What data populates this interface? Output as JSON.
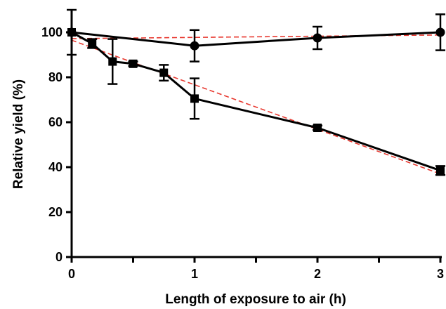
{
  "chart_data": {
    "type": "line",
    "title": "",
    "xlabel": "Length of exposure to air (h)",
    "ylabel": "Relative yield (%)",
    "xlim": [
      0,
      3
    ],
    "ylim": [
      0,
      110
    ],
    "xticks_labeled": [
      0,
      1,
      2,
      3
    ],
    "xticks_minor": [
      0.5,
      1.5,
      2.5
    ],
    "yticks": [
      0,
      20,
      40,
      60,
      80,
      100
    ],
    "grid": false,
    "legend": "none",
    "series": [
      {
        "marker": "circle",
        "color": "#000000",
        "points": [
          {
            "x": 0,
            "y": 100,
            "err": 0
          },
          {
            "x": 1,
            "y": 94,
            "err": 7
          },
          {
            "x": 2,
            "y": 97.5,
            "err": 5
          },
          {
            "x": 3,
            "y": 100,
            "err": 8
          }
        ]
      },
      {
        "marker": "square",
        "color": "#000000",
        "points": [
          {
            "x": 0,
            "y": 100,
            "err": 10
          },
          {
            "x": 0.167,
            "y": 95,
            "err": 2
          },
          {
            "x": 0.333,
            "y": 87,
            "err": 10
          },
          {
            "x": 0.5,
            "y": 86,
            "err": 1
          },
          {
            "x": 0.75,
            "y": 82,
            "err": 3.5
          },
          {
            "x": 1,
            "y": 70.5,
            "err": 9
          },
          {
            "x": 2,
            "y": 57.5,
            "err": 1
          },
          {
            "x": 3,
            "y": 38.5,
            "err": 2
          }
        ]
      }
    ],
    "fit_lines": [
      {
        "style": "dashed",
        "color": "#e8382f",
        "x": [
          0,
          3
        ],
        "y": [
          97.2,
          98.8
        ]
      },
      {
        "style": "dashed",
        "color": "#e8382f",
        "x": [
          0,
          3
        ],
        "y": [
          96.5,
          37
        ]
      }
    ]
  }
}
